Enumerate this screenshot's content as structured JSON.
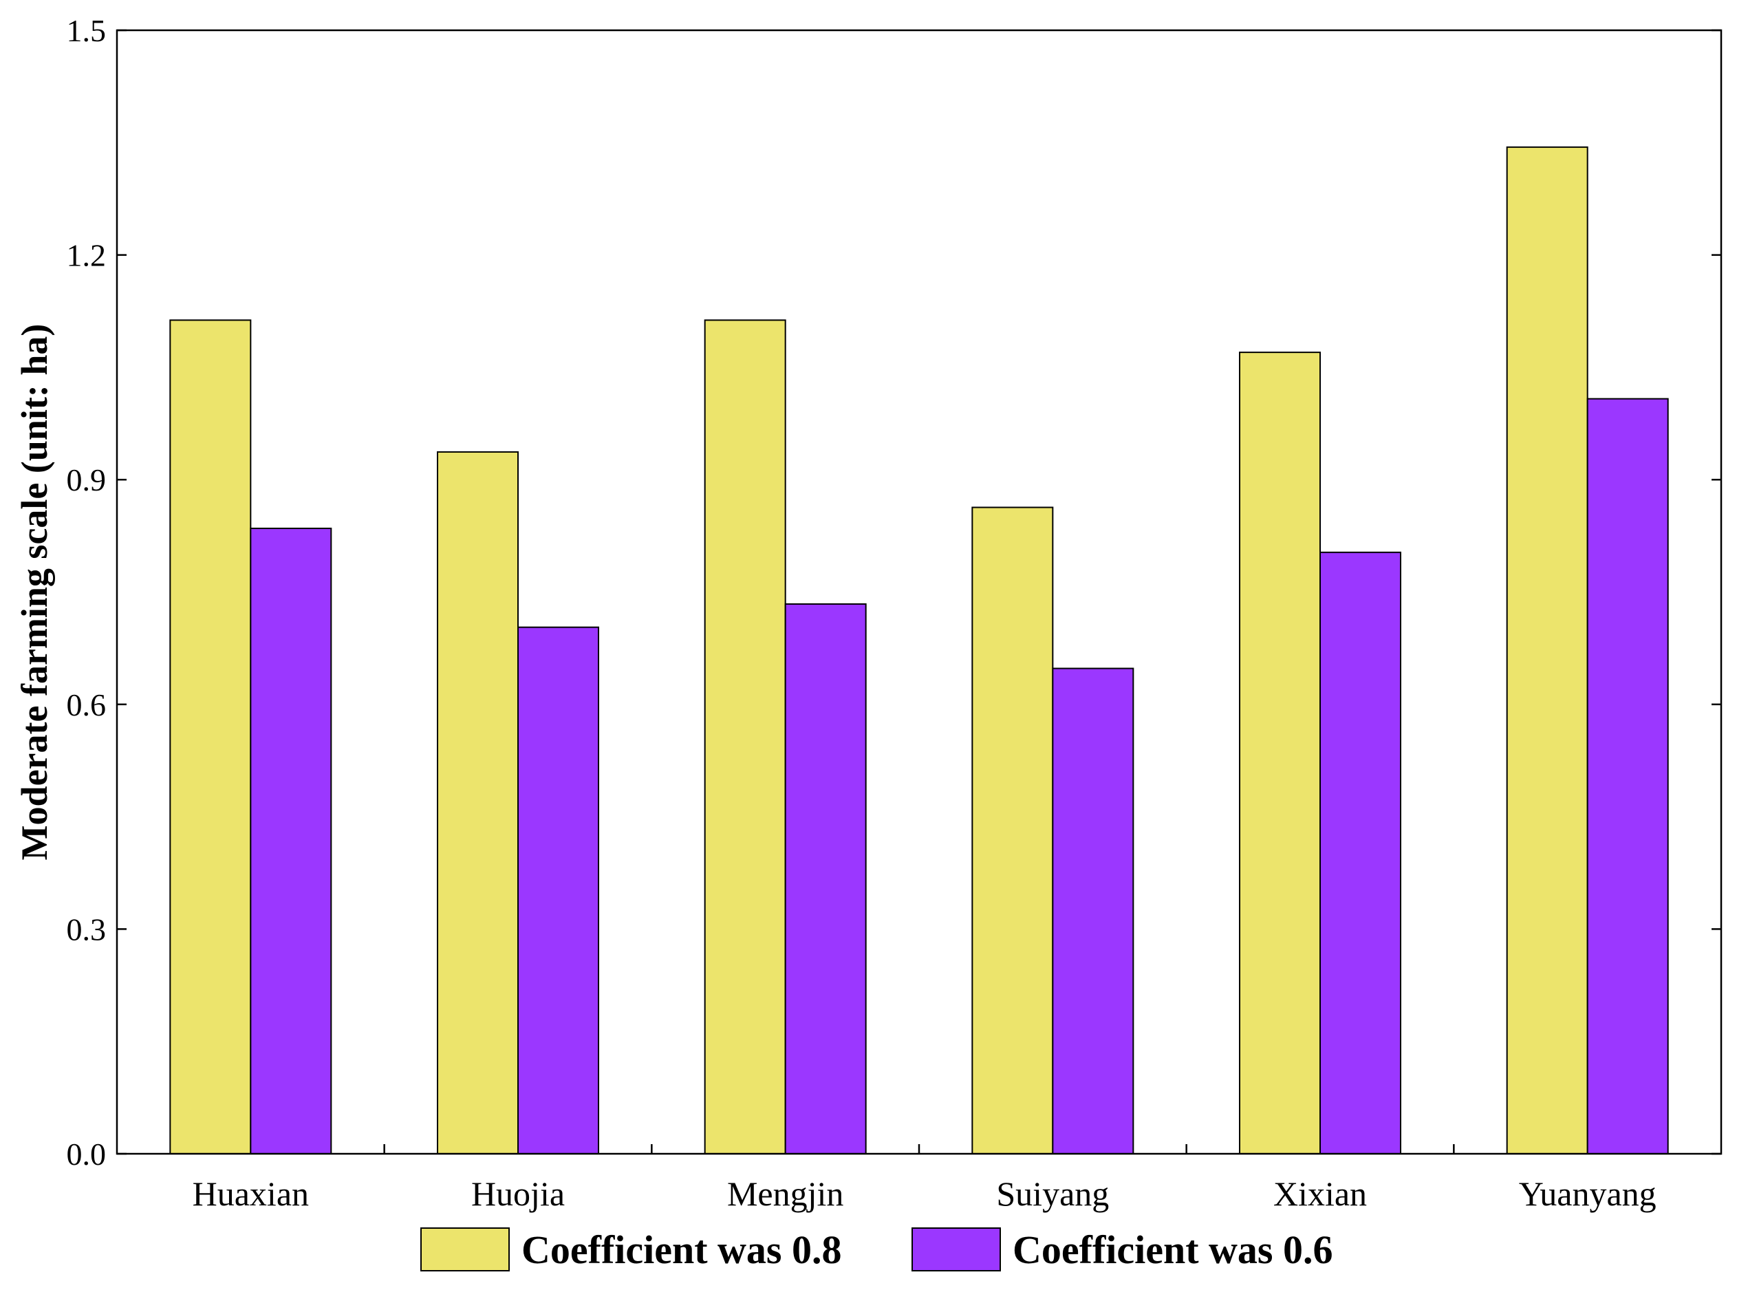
{
  "chart_data": {
    "type": "bar",
    "title": "",
    "xlabel": "",
    "ylabel": "Moderate farming scale (unit: ha)",
    "ylim": [
      0,
      1.5
    ],
    "yticks": [
      "0.0",
      "0.3",
      "0.6",
      "0.9",
      "1.2",
      "1.5"
    ],
    "categories": [
      "Huaxian",
      "Huojia",
      "Mengjin",
      "Suiyang",
      "Xixian",
      "Yuanyang"
    ],
    "series": [
      {
        "name": "Coefficient was 0.8",
        "color": "#ECE46C",
        "values": [
          1.113,
          0.937,
          1.113,
          0.863,
          1.07,
          1.344
        ]
      },
      {
        "name": "Coefficient was 0.6",
        "color": "#9B37FF",
        "values": [
          0.835,
          0.703,
          0.734,
          0.648,
          0.803,
          1.008
        ]
      }
    ],
    "grid": false,
    "legend_position": "bottom"
  }
}
